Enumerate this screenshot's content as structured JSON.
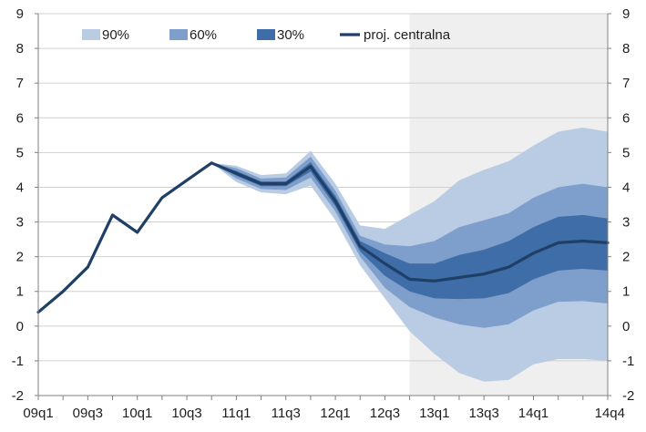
{
  "chart_data": {
    "type": "area",
    "title": "",
    "xlabel": "",
    "ylabel": "",
    "ylim": [
      -2,
      9
    ],
    "yticks": [
      -2,
      -1,
      0,
      1,
      2,
      3,
      4,
      5,
      6,
      7,
      8,
      9
    ],
    "grid": "horizontal",
    "legend_position": "top",
    "projection_shading": {
      "from": "12q4",
      "to": "14q4",
      "color": "#efefef"
    },
    "x": [
      "09q1",
      "09q2",
      "09q3",
      "09q4",
      "10q1",
      "10q2",
      "10q3",
      "10q4",
      "11q1",
      "11q2",
      "11q3",
      "11q4",
      "12q1",
      "12q2",
      "12q3",
      "12q4",
      "13q1",
      "13q2",
      "13q3",
      "13q4",
      "14q1",
      "14q2",
      "14q3",
      "14q4"
    ],
    "x_tick_labels": [
      "09q1",
      "09q3",
      "10q1",
      "10q3",
      "11q1",
      "11q3",
      "12q1",
      "12q3",
      "13q1",
      "13q3",
      "14q1",
      "14q4"
    ],
    "central": [
      0.4,
      1.0,
      1.7,
      3.2,
      2.7,
      3.7,
      4.2,
      4.7,
      4.4,
      4.1,
      4.1,
      4.6,
      3.6,
      2.3,
      1.8,
      1.35,
      1.3,
      1.4,
      1.5,
      1.7,
      2.1,
      2.4,
      2.45,
      2.4
    ],
    "bands": [
      {
        "name": "90%",
        "color": "#b9cce4",
        "lower": [
          null,
          null,
          null,
          null,
          null,
          null,
          null,
          4.7,
          4.15,
          3.85,
          3.8,
          4.05,
          3.05,
          1.75,
          0.8,
          -0.15,
          -0.8,
          -1.35,
          -1.6,
          -1.55,
          -1.1,
          -0.95,
          -0.95,
          -1.0
        ],
        "upper": [
          null,
          null,
          null,
          null,
          null,
          null,
          null,
          4.7,
          4.62,
          4.35,
          4.4,
          5.05,
          4.1,
          2.9,
          2.8,
          3.2,
          3.6,
          4.2,
          4.5,
          4.75,
          5.2,
          5.6,
          5.72,
          5.6
        ]
      },
      {
        "name": "60%",
        "color": "#7e9fcb",
        "lower": [
          null,
          null,
          null,
          null,
          null,
          null,
          null,
          4.7,
          4.25,
          3.95,
          3.92,
          4.28,
          3.3,
          2.0,
          1.1,
          0.55,
          0.25,
          0.05,
          -0.05,
          0.05,
          0.45,
          0.7,
          0.72,
          0.65
        ],
        "upper": [
          null,
          null,
          null,
          null,
          null,
          null,
          null,
          4.7,
          4.55,
          4.25,
          4.28,
          4.88,
          3.9,
          2.6,
          2.35,
          2.3,
          2.45,
          2.85,
          3.05,
          3.25,
          3.7,
          4.0,
          4.1,
          4.0
        ]
      },
      {
        "name": "30%",
        "color": "#3e6da8",
        "lower": [
          null,
          null,
          null,
          null,
          null,
          null,
          null,
          4.7,
          4.33,
          4.03,
          4.03,
          4.45,
          3.45,
          2.15,
          1.45,
          1.0,
          0.8,
          0.78,
          0.8,
          0.95,
          1.35,
          1.6,
          1.65,
          1.6
        ],
        "upper": [
          null,
          null,
          null,
          null,
          null,
          null,
          null,
          4.7,
          4.47,
          4.17,
          4.17,
          4.72,
          3.75,
          2.45,
          2.1,
          1.8,
          1.8,
          2.05,
          2.2,
          2.45,
          2.85,
          3.15,
          3.2,
          3.1
        ]
      }
    ],
    "legend": {
      "items": [
        {
          "label": "90%",
          "kind": "patch",
          "color": "#b9cce4"
        },
        {
          "label": "60%",
          "kind": "patch",
          "color": "#7e9fcb"
        },
        {
          "label": "30%",
          "kind": "patch",
          "color": "#3e6da8"
        },
        {
          "label": "proj. centralna",
          "kind": "line",
          "color": "#1f3f66"
        }
      ]
    },
    "colors": {
      "central_line": "#1f3f66",
      "gridline": "#d0d0d0",
      "axis": "#808080",
      "text": "#1f1f1f"
    }
  }
}
